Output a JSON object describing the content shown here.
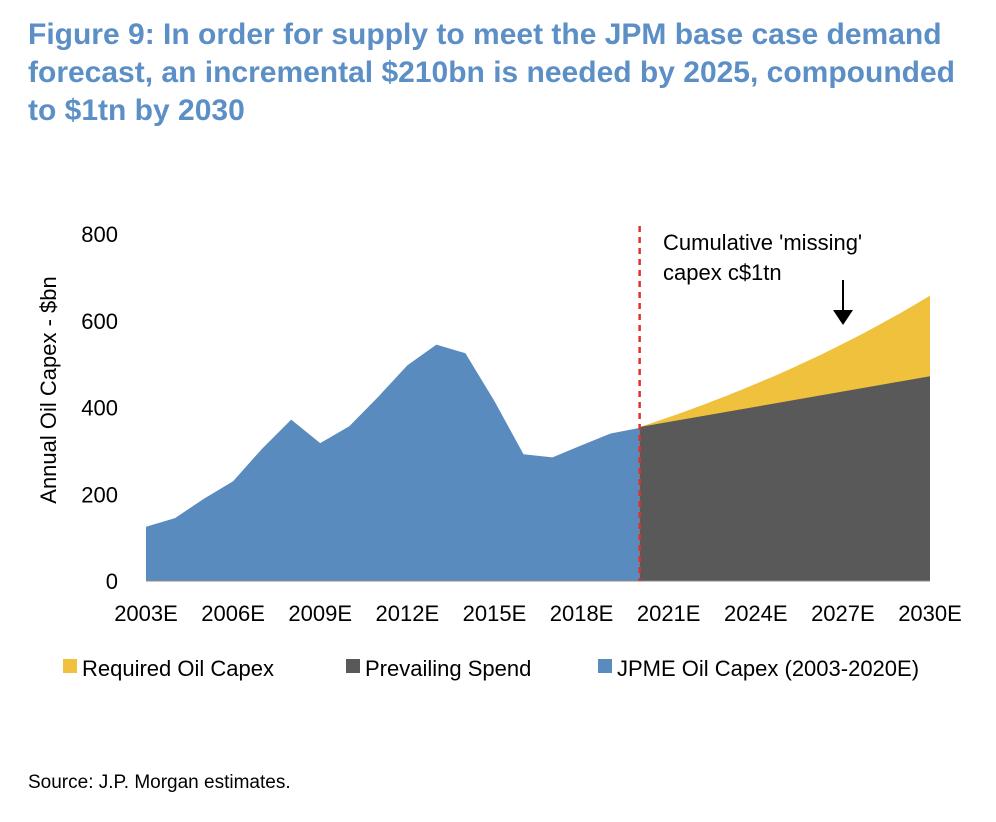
{
  "figure": {
    "title": "Figure 9: In order for supply to meet the JPM base case demand forecast, an incremental $210bn is needed by 2025, compounded to $1tn by 2030",
    "source": "Source: J.P. Morgan estimates."
  },
  "chart_data": {
    "type": "area",
    "ylabel": "Annual Oil Capex - $bn",
    "xlabel": "",
    "ylim": [
      0,
      800
    ],
    "yticks": [
      0,
      200,
      400,
      600,
      800
    ],
    "xlim": [
      2003,
      2030
    ],
    "xtick_labels": [
      "2003E",
      "2006E",
      "2009E",
      "2012E",
      "2015E",
      "2018E",
      "2021E",
      "2024E",
      "2027E",
      "2030E"
    ],
    "grid": false,
    "legend_position": "bottom",
    "series": [
      {
        "name": "Required Oil Capex",
        "color": "#f0c13c",
        "x": [
          2020,
          2030
        ],
        "values": [
          355,
          658
        ],
        "curve": "exponential"
      },
      {
        "name": "Prevailing Spend",
        "color": "#595959",
        "x": [
          2020,
          2030
        ],
        "values": [
          355,
          472
        ],
        "curve": "linear"
      },
      {
        "name": "JPME Oil Capex (2003-2020E)",
        "color": "#5a8bbf",
        "x": [
          2003,
          2004,
          2005,
          2006,
          2007,
          2008,
          2009,
          2010,
          2011,
          2012,
          2013,
          2014,
          2015,
          2016,
          2017,
          2018,
          2019,
          2020
        ],
        "values": [
          125,
          145,
          190,
          230,
          305,
          372,
          318,
          357,
          425,
          497,
          545,
          525,
          415,
          292,
          285,
          313,
          340,
          353
        ]
      }
    ],
    "divider_x": 2020,
    "annotation": {
      "lines": [
        "Cumulative 'missing'",
        "capex c$1tn"
      ]
    }
  }
}
